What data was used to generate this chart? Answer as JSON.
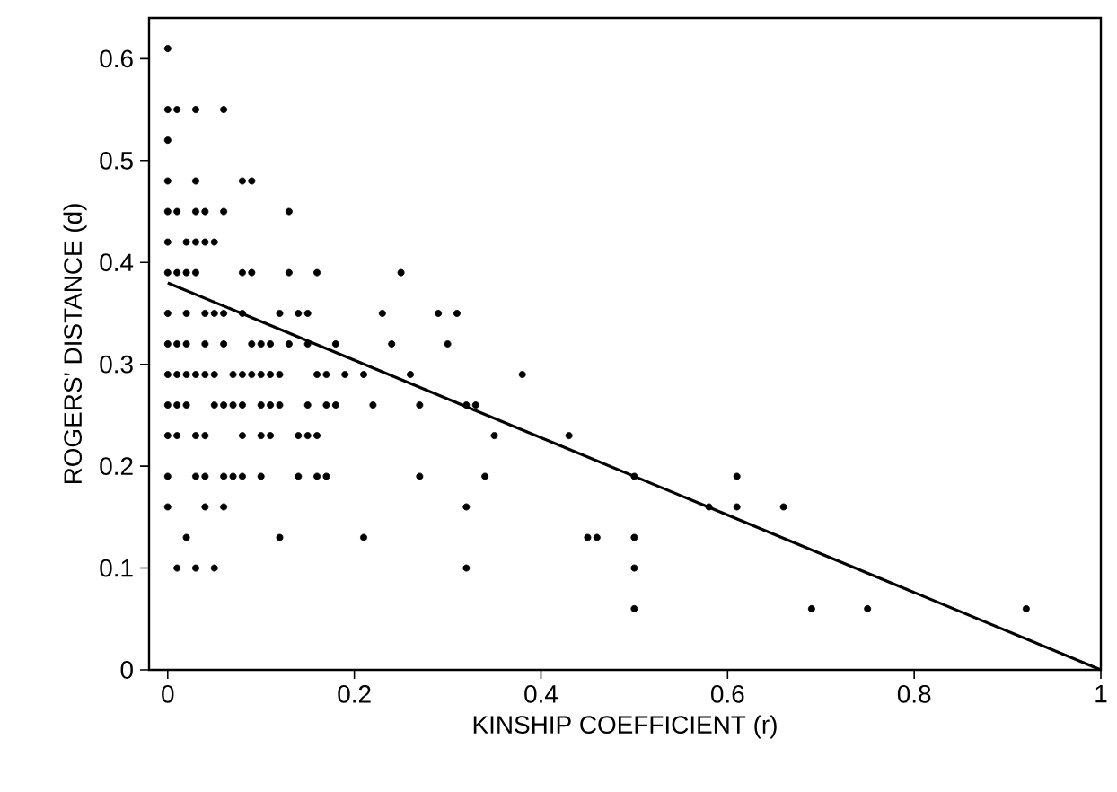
{
  "chart_data": {
    "type": "scatter",
    "xlabel": "KINSHIP COEFFICIENT (r)",
    "ylabel": "ROGERS' DISTANCE (d)",
    "xlim": [
      -0.02,
      1
    ],
    "ylim": [
      0,
      0.64
    ],
    "xticks": [
      0,
      0.2,
      0.4,
      0.6,
      0.8,
      1
    ],
    "yticks": [
      0,
      0.1,
      0.2,
      0.3,
      0.4,
      0.5,
      0.6
    ],
    "grid": false,
    "series": [
      {
        "marker": "circle",
        "color": "#000000",
        "x": [
          0,
          0,
          0.01,
          0.03,
          0.06,
          0,
          0,
          0.03,
          0.08,
          0.09,
          0,
          0.01,
          0.03,
          0.04,
          0.06,
          0.13,
          0,
          0.02,
          0.03,
          0.04,
          0.05,
          0,
          0.01,
          0.02,
          0.03,
          0.08,
          0.09,
          0.13,
          0.16,
          0.25,
          0,
          0.02,
          0.04,
          0.05,
          0.06,
          0.08,
          0.12,
          0.14,
          0.15,
          0.23,
          0.29,
          0.31,
          0,
          0.01,
          0.02,
          0.04,
          0.06,
          0.09,
          0.1,
          0.11,
          0.13,
          0.15,
          0.18,
          0.24,
          0.3,
          0,
          0.01,
          0.02,
          0.03,
          0.04,
          0.05,
          0.07,
          0.08,
          0.09,
          0.1,
          0.11,
          0.12,
          0.16,
          0.17,
          0.19,
          0.21,
          0.26,
          0.38,
          0,
          0.01,
          0.02,
          0.05,
          0.06,
          0.07,
          0.08,
          0.1,
          0.11,
          0.12,
          0.15,
          0.17,
          0.18,
          0.22,
          0.27,
          0.32,
          0.33,
          0,
          0.01,
          0.03,
          0.04,
          0.08,
          0.1,
          0.11,
          0.14,
          0.15,
          0.16,
          0.35,
          0.43,
          0,
          0.03,
          0.04,
          0.06,
          0.07,
          0.08,
          0.1,
          0.14,
          0.16,
          0.17,
          0.27,
          0.34,
          0.5,
          0.61,
          0,
          0.04,
          0.06,
          0.32,
          0.58,
          0.61,
          0.66,
          0.02,
          0.12,
          0.21,
          0.45,
          0.46,
          0.5,
          0.01,
          0.03,
          0.05,
          0.32,
          0.5,
          0.5,
          0.69,
          0.75,
          0.92
        ],
        "values": [
          0.61,
          0.55,
          0.55,
          0.55,
          0.55,
          0.52,
          0.48,
          0.48,
          0.48,
          0.48,
          0.45,
          0.45,
          0.45,
          0.45,
          0.45,
          0.45,
          0.42,
          0.42,
          0.42,
          0.42,
          0.42,
          0.39,
          0.39,
          0.39,
          0.39,
          0.39,
          0.39,
          0.39,
          0.39,
          0.39,
          0.35,
          0.35,
          0.35,
          0.35,
          0.35,
          0.35,
          0.35,
          0.35,
          0.35,
          0.35,
          0.35,
          0.35,
          0.32,
          0.32,
          0.32,
          0.32,
          0.32,
          0.32,
          0.32,
          0.32,
          0.32,
          0.32,
          0.32,
          0.32,
          0.32,
          0.29,
          0.29,
          0.29,
          0.29,
          0.29,
          0.29,
          0.29,
          0.29,
          0.29,
          0.29,
          0.29,
          0.29,
          0.29,
          0.29,
          0.29,
          0.29,
          0.29,
          0.29,
          0.26,
          0.26,
          0.26,
          0.26,
          0.26,
          0.26,
          0.26,
          0.26,
          0.26,
          0.26,
          0.26,
          0.26,
          0.26,
          0.26,
          0.26,
          0.26,
          0.26,
          0.23,
          0.23,
          0.23,
          0.23,
          0.23,
          0.23,
          0.23,
          0.23,
          0.23,
          0.23,
          0.23,
          0.23,
          0.19,
          0.19,
          0.19,
          0.19,
          0.19,
          0.19,
          0.19,
          0.19,
          0.19,
          0.19,
          0.19,
          0.19,
          0.19,
          0.19,
          0.16,
          0.16,
          0.16,
          0.16,
          0.16,
          0.16,
          0.16,
          0.13,
          0.13,
          0.13,
          0.13,
          0.13,
          0.13,
          0.1,
          0.1,
          0.1,
          0.1,
          0.1,
          0.06,
          0.06,
          0.06,
          0.06
        ]
      },
      {
        "type": "line",
        "color": "#000000",
        "x": [
          0,
          1
        ],
        "values": [
          0.38,
          0
        ]
      }
    ]
  }
}
